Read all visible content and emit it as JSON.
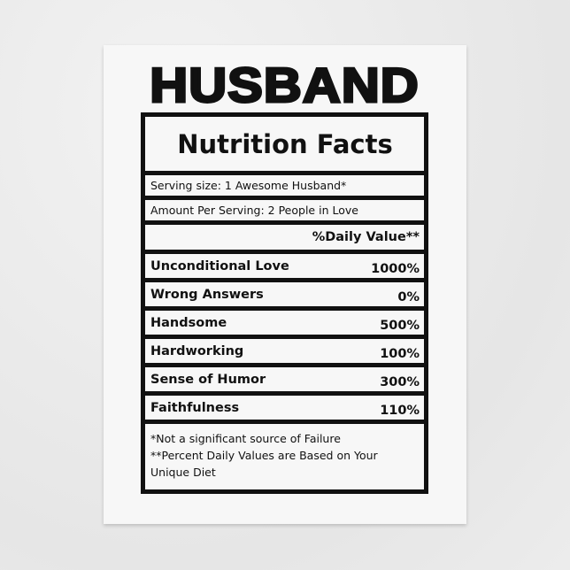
{
  "title": "HUSBAND",
  "label": {
    "heading": "Nutrition Facts",
    "serving_size": "Serving size: 1 Awesome Husband*",
    "amount_per_serving": "Amount Per Serving: 2 People in Love",
    "daily_value_header": "%Daily Value**",
    "items": [
      {
        "name": "Unconditional Love",
        "value": "1000%"
      },
      {
        "name": "Wrong Answers",
        "value": "0%"
      },
      {
        "name": "Handsome",
        "value": "500%"
      },
      {
        "name": "Hardworking",
        "value": "100%"
      },
      {
        "name": "Sense of Humor",
        "value": "300%"
      },
      {
        "name": "Faithfulness",
        "value": "110%"
      }
    ],
    "footnotes": [
      "*Not a significant source of Failure",
      "**Percent Daily Values are Based on Your Unique Diet"
    ]
  }
}
